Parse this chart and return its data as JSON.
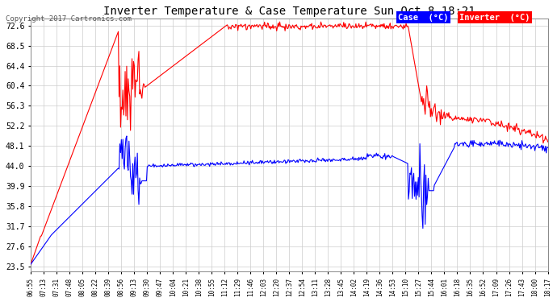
{
  "title": "Inverter Temperature & Case Temperature Sun Oct 8 18:21",
  "copyright": "Copyright 2017 Cartronics.com",
  "background_color": "#ffffff",
  "plot_bg_color": "#ffffff",
  "grid_color": "#cccccc",
  "y_ticks": [
    23.5,
    27.6,
    31.7,
    35.8,
    39.9,
    44.0,
    48.1,
    52.2,
    56.3,
    60.4,
    64.4,
    68.5,
    72.6
  ],
  "ylim": [
    22.5,
    74.0
  ],
  "x_labels": [
    "06:55",
    "07:13",
    "07:31",
    "07:48",
    "08:05",
    "08:22",
    "08:39",
    "08:56",
    "09:13",
    "09:30",
    "09:47",
    "10:04",
    "10:21",
    "10:38",
    "10:55",
    "11:12",
    "11:29",
    "11:46",
    "12:03",
    "12:20",
    "12:37",
    "12:54",
    "13:11",
    "13:28",
    "13:45",
    "14:02",
    "14:19",
    "14:36",
    "14:53",
    "15:10",
    "15:27",
    "15:44",
    "16:01",
    "16:18",
    "16:35",
    "16:52",
    "17:09",
    "17:26",
    "17:43",
    "18:00",
    "18:17"
  ],
  "case_color": "#0000ff",
  "inverter_color": "#ff0000",
  "legend_case_bg": "#0000ff",
  "legend_inv_bg": "#ff0000",
  "legend_text_color": "#ffffff"
}
